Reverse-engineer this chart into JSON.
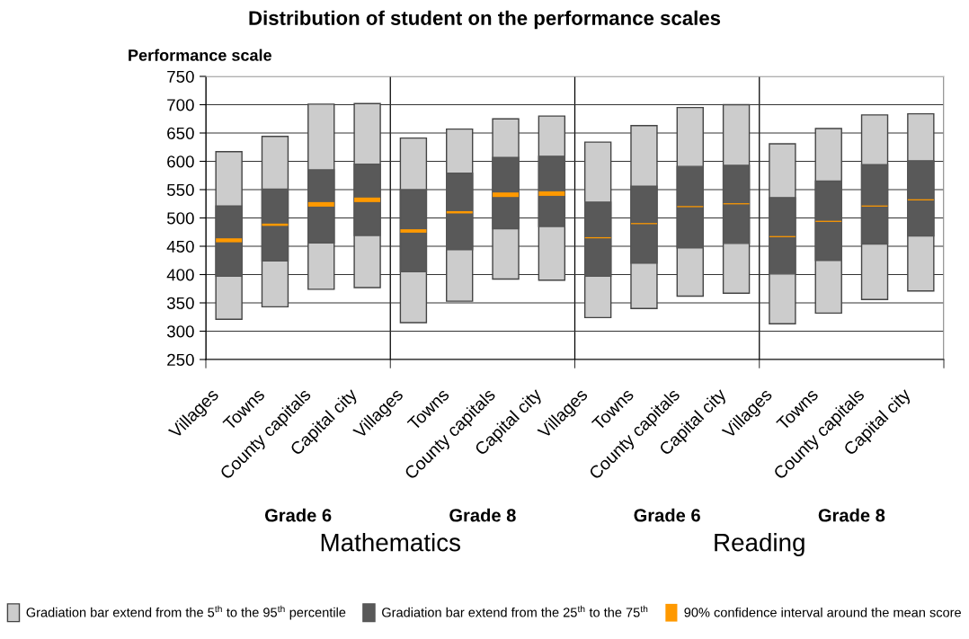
{
  "chart_data": {
    "type": "bar",
    "title": "Distribution of student on the performance scales",
    "ylabel": "Performance scale",
    "categories": [
      "Villages",
      "Towns",
      "County capitals",
      "Capital city",
      "Villages",
      "Towns",
      "County capitals",
      "Capital city",
      "Villages",
      "Towns",
      "County capitals",
      "Capital city",
      "Villages",
      "Towns",
      "County capitals",
      "Capital city"
    ],
    "annotations": [
      "Grade 6",
      "Grade 8",
      "Grade 6",
      "Grade 8",
      "Mathematics",
      "Reading"
    ],
    "series": [
      {
        "name": "Gradiation bar extend from the 5$^{th}$ to the 95$^{th}$ percentile",
        "color": "#cccccc",
        "base": [
          321,
          343,
          374,
          377,
          315,
          353,
          392,
          390,
          324,
          340,
          362,
          367,
          313,
          332,
          356,
          371
        ],
        "values": [
          296,
          301,
          327,
          325,
          326,
          304,
          283,
          290,
          310,
          323,
          333,
          333,
          318,
          326,
          326,
          313
        ]
      },
      {
        "name": "Gradiation bar extend from the 25$^{th}$ to the 75$^{th}$",
        "color": "#595959",
        "base": [
          397,
          424,
          456,
          469,
          405,
          444,
          481,
          485,
          397,
          420,
          447,
          455,
          401,
          425,
          454,
          468
        ],
        "values": [
          124,
          127,
          129,
          126,
          145,
          135,
          126,
          124,
          131,
          136,
          144,
          138,
          135,
          140,
          140,
          133
        ]
      },
      {
        "name": "90% confidence interval around the mean score",
        "color": "#ff9900",
        "base": [
          457,
          486,
          520,
          528,
          474,
          508,
          537,
          539,
          464,
          489,
          519,
          524,
          466,
          493,
          520,
          531
        ],
        "values": [
          7,
          4,
          8,
          8,
          6,
          4,
          8,
          8,
          2,
          2,
          2,
          2,
          2,
          2,
          2,
          2
        ]
      }
    ],
    "ylim": [
      250,
      750
    ],
    "yticks": [
      250,
      300,
      350,
      400,
      450,
      500,
      550,
      600,
      650,
      700,
      750
    ],
    "grid": true,
    "legend": "bottom"
  }
}
